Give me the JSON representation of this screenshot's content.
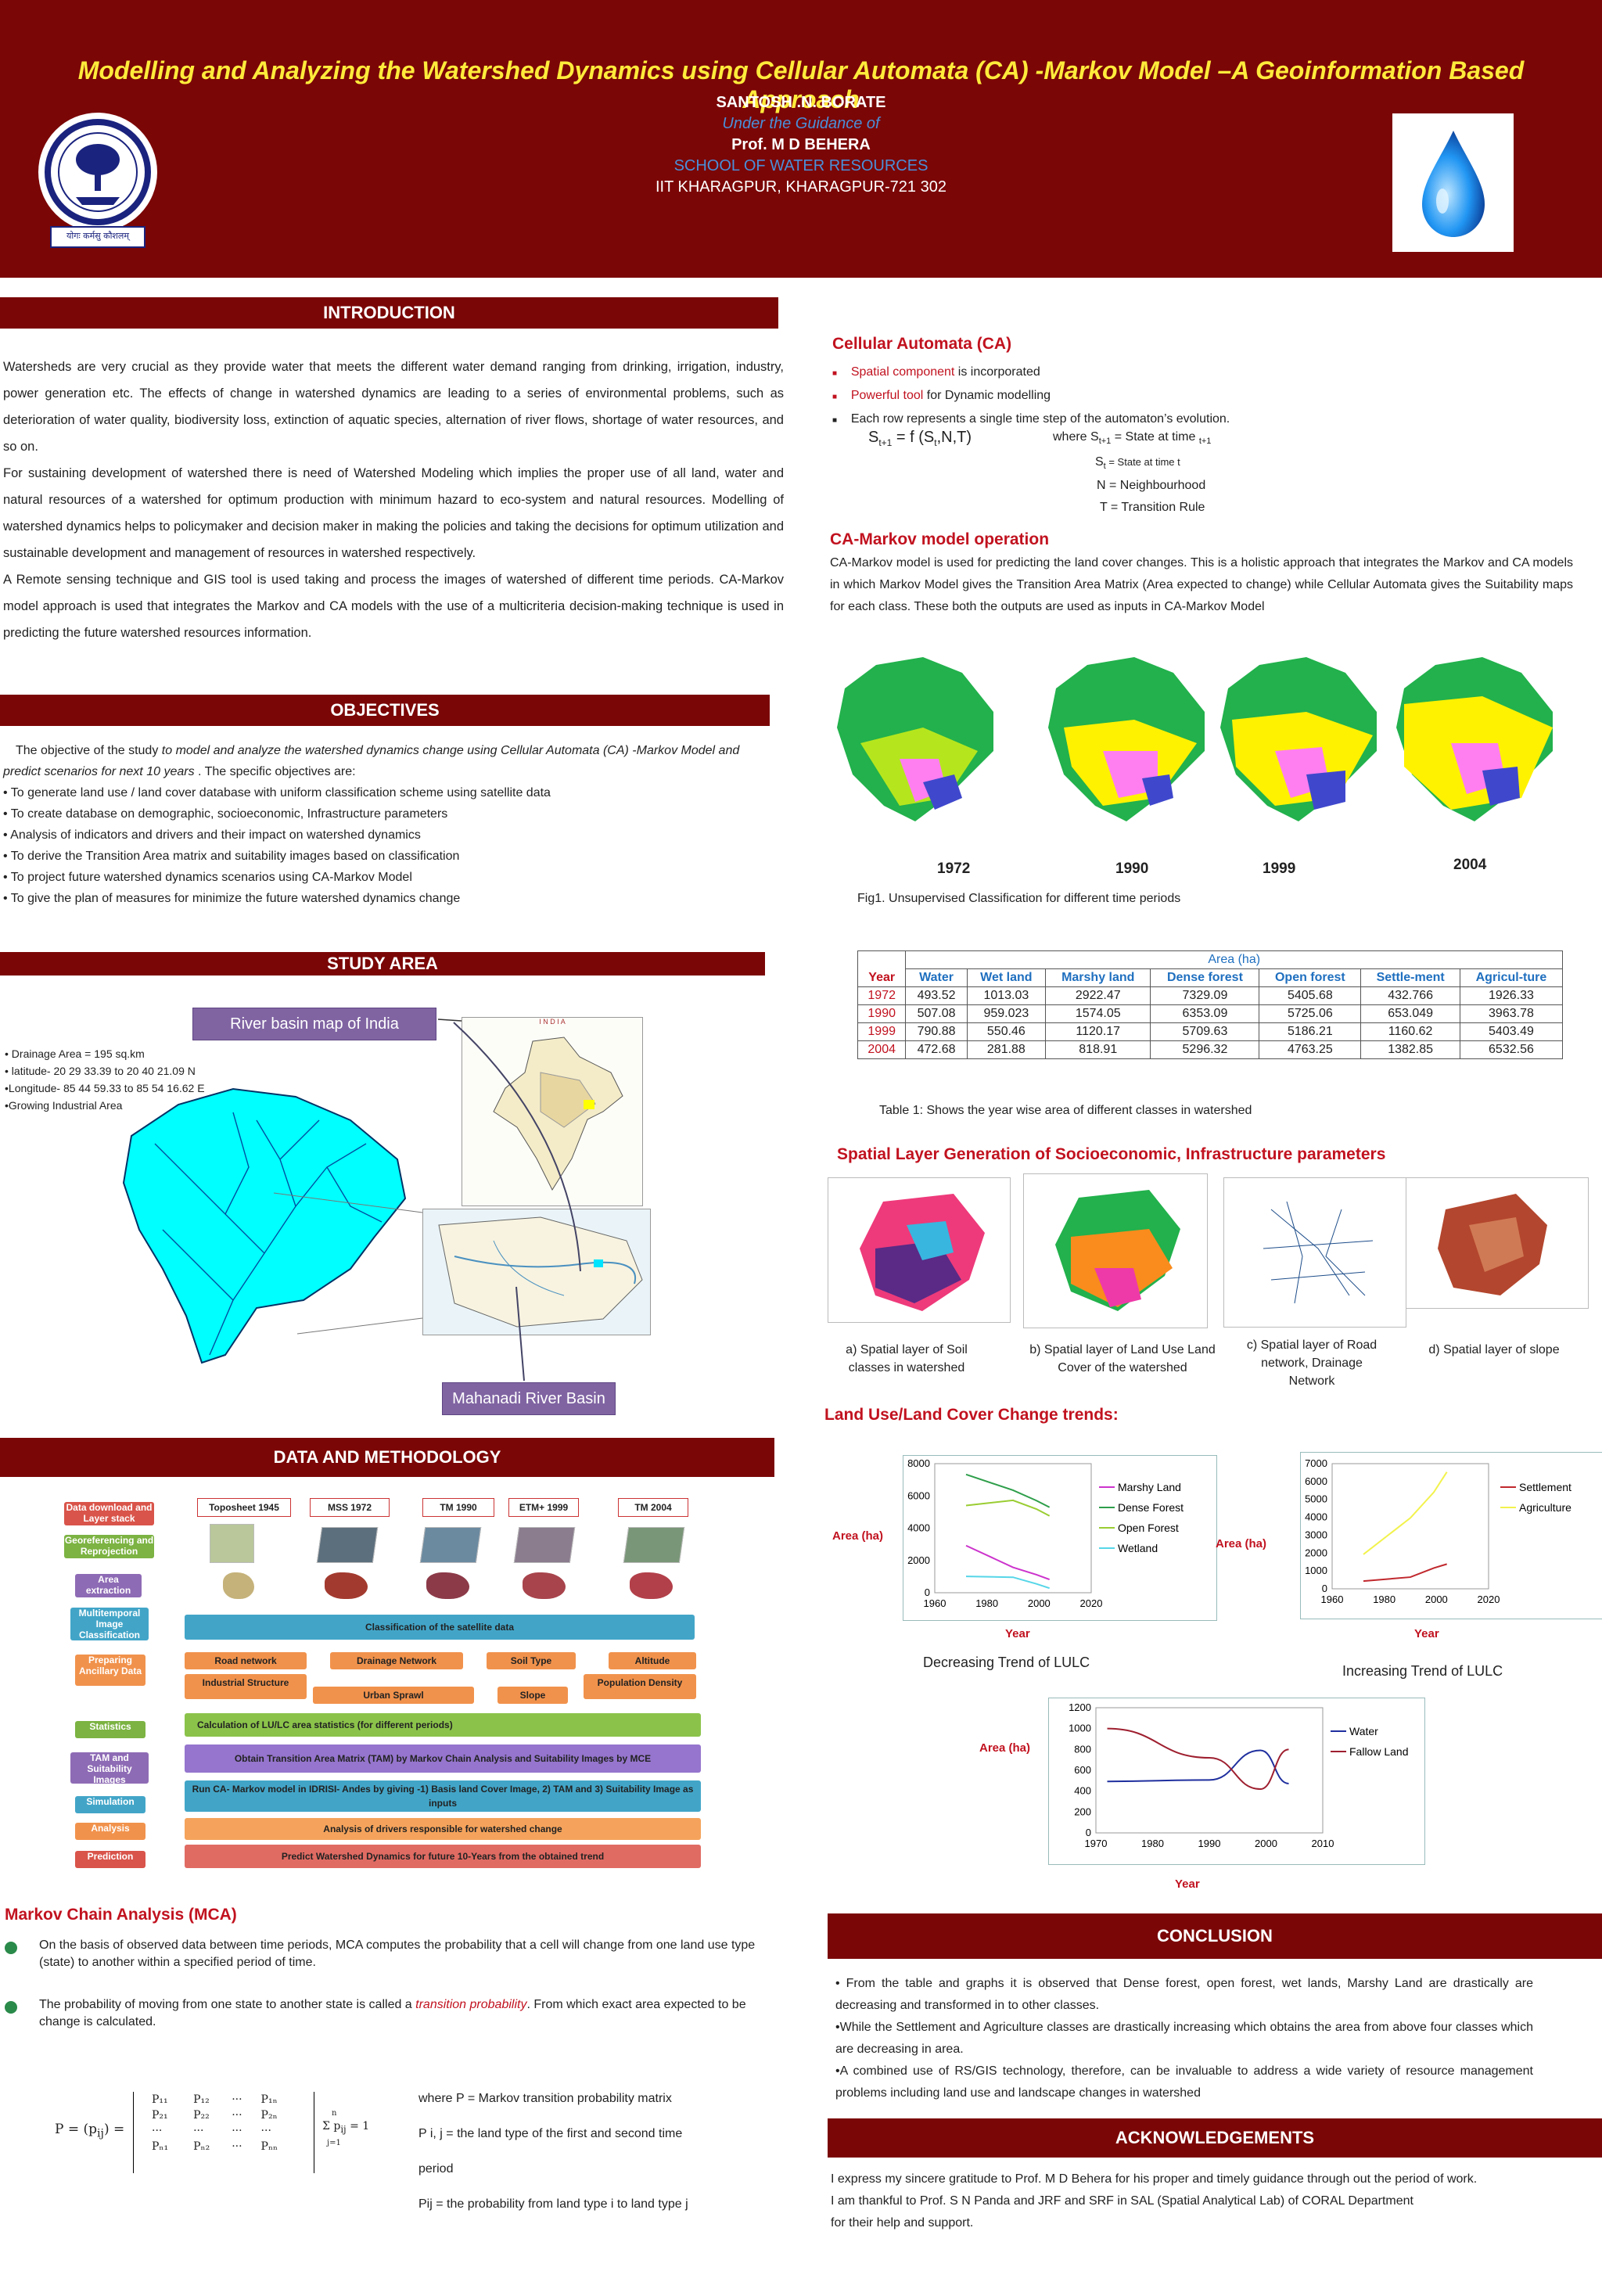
{
  "header": {
    "title": "Modelling and Analyzing the Watershed Dynamics using Cellular Automata (CA) -Markov Model –A Geoinformation Based Approach",
    "author": "SANTOSH .N. BORATE",
    "guidance": "Under the Guidance of",
    "guide": "Prof. M D BEHERA",
    "school": "SCHOOL OF WATER RESOURCES",
    "institute": "IIT KHARAGPUR, KHARAGPUR-721 302",
    "logo_text": "योगः कर्मसु कौशलम्"
  },
  "intro": {
    "heading": "INTRODUCTION",
    "p1": "Watersheds are very crucial as they provide water that meets the different water demand ranging from drinking, irrigation, industry, power generation etc. The effects of change in watershed dynamics are leading to a series of environmental problems, such as deterioration of water quality, biodiversity loss, extinction of aquatic species, alternation of river flows, shortage of water resources, and so on.",
    "p2": "For sustaining development of watershed there is need of Watershed Modeling which implies the proper use of all land, water and natural resources of a watershed for optimum production with minimum hazard to eco-system and natural resources. Modelling of watershed dynamics helps to policymaker and decision maker in making the policies and taking the decisions for optimum utilization and sustainable development and management of resources in watershed respectively.",
    "p3": "A Remote sensing technique and GIS tool is used taking and process the images of watershed of different time periods. CA-Markov model approach is used that integrates the Markov and CA models with the use of a multicriteria decision-making technique is used in predicting the future watershed resources information."
  },
  "objectives": {
    "heading": "OBJECTIVES",
    "intro_a": "The objective of the study ",
    "intro_b": "to model and analyze the watershed dynamics change using Cellular Automata (CA) -Markov Model  and predict scenarios for next 10 years",
    "intro_c": " . The specific objectives are:",
    "items": [
      "• To generate land use / land cover database with uniform  classification scheme using satellite data",
      "• To create database on demographic, socioeconomic,    Infrastructure parameters",
      "• Analysis of indicators and drivers and their impact on  watershed dynamics",
      "• To derive the Transition Area matrix and suitability images  based on classification",
      "• To project future watershed dynamics scenarios using CA-Markov Model",
      "• To give the plan of measures for minimize the future watershed  dynamics change"
    ]
  },
  "study_area": {
    "heading": "STUDY AREA",
    "facts": [
      "• Drainage Area = 195 sq.km",
      "• latitude-  20 29 33.39 to 20 40 21.09 N",
      "•Longitude- 85 44 59.33 to 85 54 16.62 E",
      "•Growing Industrial Area"
    ],
    "india_label": "River basin map of India",
    "basin_label": "Mahanadi River Basin",
    "india_map_title": "I N D I A"
  },
  "methodology": {
    "heading": "DATA AND METHODOLOGY",
    "sat_labels": [
      "Toposheet 1945",
      "MSS 1972",
      "TM 1990",
      "ETM+ 1999",
      "TM 2004"
    ],
    "steps": [
      "Data download and Layer stack",
      "Georeferencing and Reprojection",
      "Area extraction",
      "Multitemporal Image Classification",
      "Preparing Ancillary Data",
      "Statistics",
      "TAM and Suitability Images",
      "Simulation",
      "Analysis",
      "Prediction"
    ],
    "classification": "Classification of the satellite data",
    "ancillary": [
      "Road network",
      "Drainage Network",
      "Soil Type",
      "Altitude",
      "Industrial Structure",
      "Urban Sprawl",
      "Slope",
      "Population Density"
    ],
    "statistics": "Calculation of  LU/LC area statistics (for different periods)",
    "tam": "Obtain Transition Area Matrix (TAM)  by Markov Chain Analysis and Suitability Images by MCE",
    "simulation": "Run CA- Markov  model in IDRISI- Andes by giving -1) Basis land Cover Image,  2) TAM and  3) Suitability Image  as inputs",
    "analysis": "Analysis of drivers responsible for watershed change",
    "prediction": "Predict Watershed Dynamics for future 10-Years from the obtained trend"
  },
  "mca": {
    "heading": "Markov Chain Analysis (MCA)",
    "p1": "On the basis of observed data between time periods, MCA computes  the probability that a cell will change  from one land use type (state) to another within a specified period of time.",
    "p2a": "The probability of moving from one state to another state is called a ",
    "p2b": "transition probability",
    "p2c": ". From which  exact  area expected to be change is calculated.",
    "notes": [
      "where P = Markov transition probability matrix",
      "P i, j = the land type of the first and second time",
      "period",
      "Pij = the probability from land type i to land type j"
    ],
    "eq_lhs": "P = (p",
    "eq_sub": "ij",
    "eq_rhs": ") =",
    "matrix": [
      [
        "P₁₁",
        "P₁₂",
        "···",
        "P₁ₙ"
      ],
      [
        "P₂₁",
        "P₂₂",
        "···",
        "P₂ₙ"
      ],
      [
        "···",
        "···",
        "···",
        "···"
      ],
      [
        "Pₙ₁",
        "Pₙ₂",
        "···",
        "Pₙₙ"
      ]
    ],
    "sum_expr": "Σ p",
    "sum_top": "n",
    "sum_bottom": "j=1",
    "sum_sub": "ij",
    "sum_eq": " = 1"
  },
  "ca": {
    "heading": "Cellular Automata (CA)",
    "b1_red": "Spatial component",
    "b1_rest": " is incorporated",
    "b2_red": "Powerful tool",
    "b2_rest": " for Dynamic modelling",
    "b3": "Each row represents a single time step of the automaton’s evolution.",
    "eq_s": "S",
    "eq_sub": "t+1",
    "eq_main": " = f (S",
    "eq_sub2": "t",
    "eq_tail": ",N,T)",
    "where_a": "where S",
    "where_sub": "t+1",
    "where_b": " = State at time ",
    "where_sub2": "t+1",
    "st_a": "S",
    "st_sub": "t",
    "st_b": " = State at time t",
    "n_def": "N = Neighbourhood",
    "t_def": "T = Transition Rule"
  },
  "camarkov": {
    "heading": "CA-Markov model operation",
    "p": "CA-Markov model is used for predicting the land cover changes. This is a holistic approach that integrates the Markov and CA models in which  Markov Model gives the Transition  Area Matrix (Area expected to change) while Cellular Automata gives the Suitability maps for each class. These both  the outputs  are used as inputs in CA-Markov Model"
  },
  "fig1": {
    "years": [
      "1972",
      "1990",
      "1999",
      "2004"
    ],
    "caption": "Fig1. Unsupervised Classification for different time periods"
  },
  "table1": {
    "group": "Area (ha)",
    "headers": [
      "Year",
      "Water",
      "Wet land",
      "Marshy land",
      "Dense forest",
      "Open forest",
      "Settle-ment",
      "Agricul-ture"
    ],
    "rows": [
      [
        "1972",
        "493.52",
        "1013.03",
        "2922.47",
        "7329.09",
        "5405.68",
        "432.766",
        "1926.33"
      ],
      [
        "1990",
        "507.08",
        "959.023",
        "1574.05",
        "6353.09",
        "5725.06",
        "653.049",
        "3963.78"
      ],
      [
        "1999",
        "790.88",
        "550.46",
        "1120.17",
        "5709.63",
        "5186.21",
        "1160.62",
        "5403.49"
      ],
      [
        "2004",
        "472.68",
        "281.88",
        "818.91",
        "5296.32",
        "4763.25",
        "1382.85",
        "6532.56"
      ]
    ],
    "caption": "Table 1: Shows the year wise area of different classes in watershed"
  },
  "spatial": {
    "heading": "Spatial Layer Generation of Socioeconomic, Infrastructure parameters",
    "captions": [
      "a) Spatial layer of Soil classes in watershed",
      "b)  Spatial layer of Land Use Land Cover of the watershed",
      "c) Spatial layer of Road network, Drainage Network",
      "d) Spatial layer of slope"
    ]
  },
  "trends": {
    "heading": "Land Use/Land Cover Change trends:",
    "decreasing_caption": "Decreasing Trend of LULC",
    "increasing_caption": "Increasing Trend of LULC"
  },
  "chart_data": [
    {
      "type": "line",
      "ylabel": "Area (ha)",
      "xlabel": "Year",
      "xlim": [
        1960,
        2020
      ],
      "ylim": [
        0,
        8000
      ],
      "xticks": [
        1960,
        1980,
        2000,
        2020
      ],
      "yticks": [
        0,
        2000,
        4000,
        6000,
        8000
      ],
      "legend": "right",
      "x": [
        1972,
        1990,
        1999,
        2004
      ],
      "series": [
        {
          "name": "Marshy Land",
          "color": "#cc33cc",
          "values": [
            2922.47,
            1574.05,
            1120.17,
            818.91
          ]
        },
        {
          "name": "Dense Forest",
          "color": "#2e9e4a",
          "values": [
            7329.09,
            6353.09,
            5709.63,
            5296.32
          ]
        },
        {
          "name": "Open Forest",
          "color": "#9acd32",
          "values": [
            5405.68,
            5725.06,
            5186.21,
            4763.25
          ]
        },
        {
          "name": "Wetland",
          "color": "#56d6e8",
          "values": [
            1013.03,
            959.023,
            550.46,
            281.88
          ]
        }
      ]
    },
    {
      "type": "line",
      "ylabel": "Area (ha)",
      "xlabel": "Year",
      "xlim": [
        1960,
        2020
      ],
      "ylim": [
        0,
        7000
      ],
      "xticks": [
        1960,
        1980,
        2000,
        2020
      ],
      "yticks": [
        0,
        1000,
        2000,
        3000,
        4000,
        5000,
        6000,
        7000
      ],
      "legend": "right",
      "x": [
        1972,
        1990,
        1999,
        2004
      ],
      "series": [
        {
          "name": "Settlement",
          "color": "#c0282d",
          "values": [
            432.766,
            653.049,
            1160.62,
            1382.85
          ]
        },
        {
          "name": "Agriculture",
          "color": "#f2f24d",
          "values": [
            1926.33,
            3963.78,
            5403.49,
            6532.56
          ]
        }
      ]
    },
    {
      "type": "line",
      "ylabel": "Area (ha)",
      "xlabel": "Year",
      "xlim": [
        1970,
        2010
      ],
      "ylim": [
        0,
        1200
      ],
      "xticks": [
        1970,
        1980,
        1990,
        2000,
        2010
      ],
      "yticks": [
        0,
        200,
        400,
        600,
        800,
        1000,
        1200
      ],
      "legend": "right",
      "series": [
        {
          "name": "Water",
          "color": "#1f2f9e",
          "x": [
            1972,
            1990,
            1999,
            2004
          ],
          "values": [
            493.52,
            507.08,
            790.88,
            472.68
          ]
        },
        {
          "name": "Fallow Land",
          "color": "#9e1f2f",
          "x": [
            1972,
            1990,
            1999,
            2004
          ],
          "values": [
            1000,
            720,
            420,
            800
          ]
        }
      ]
    }
  ],
  "conclusion": {
    "heading": "CONCLUSION",
    "p1": "• From the table and graphs it is observed that Dense forest, open forest, wet lands, Marshy Land are drastically are decreasing and transformed in to other classes.",
    "p2": "•While the Settlement and Agriculture classes are drastically increasing which obtains the area from above four classes which are decreasing in area.",
    "p3": "•A combined use of RS/GIS technology, therefore, can be invaluable to address a wide variety of resource management problems including land use and landscape changes in watershed"
  },
  "ack": {
    "heading": "ACKNOWLEDGEMENTS",
    "l1": "I express my sincere gratitude to Prof. M D Behera for his proper and timely guidance through out the period of work.",
    "l2": "I am thankful to Prof. S N Panda and JRF and SRF in SAL (Spatial Analytical Lab) of CORAL Department",
    "l3": "for their help and support."
  }
}
